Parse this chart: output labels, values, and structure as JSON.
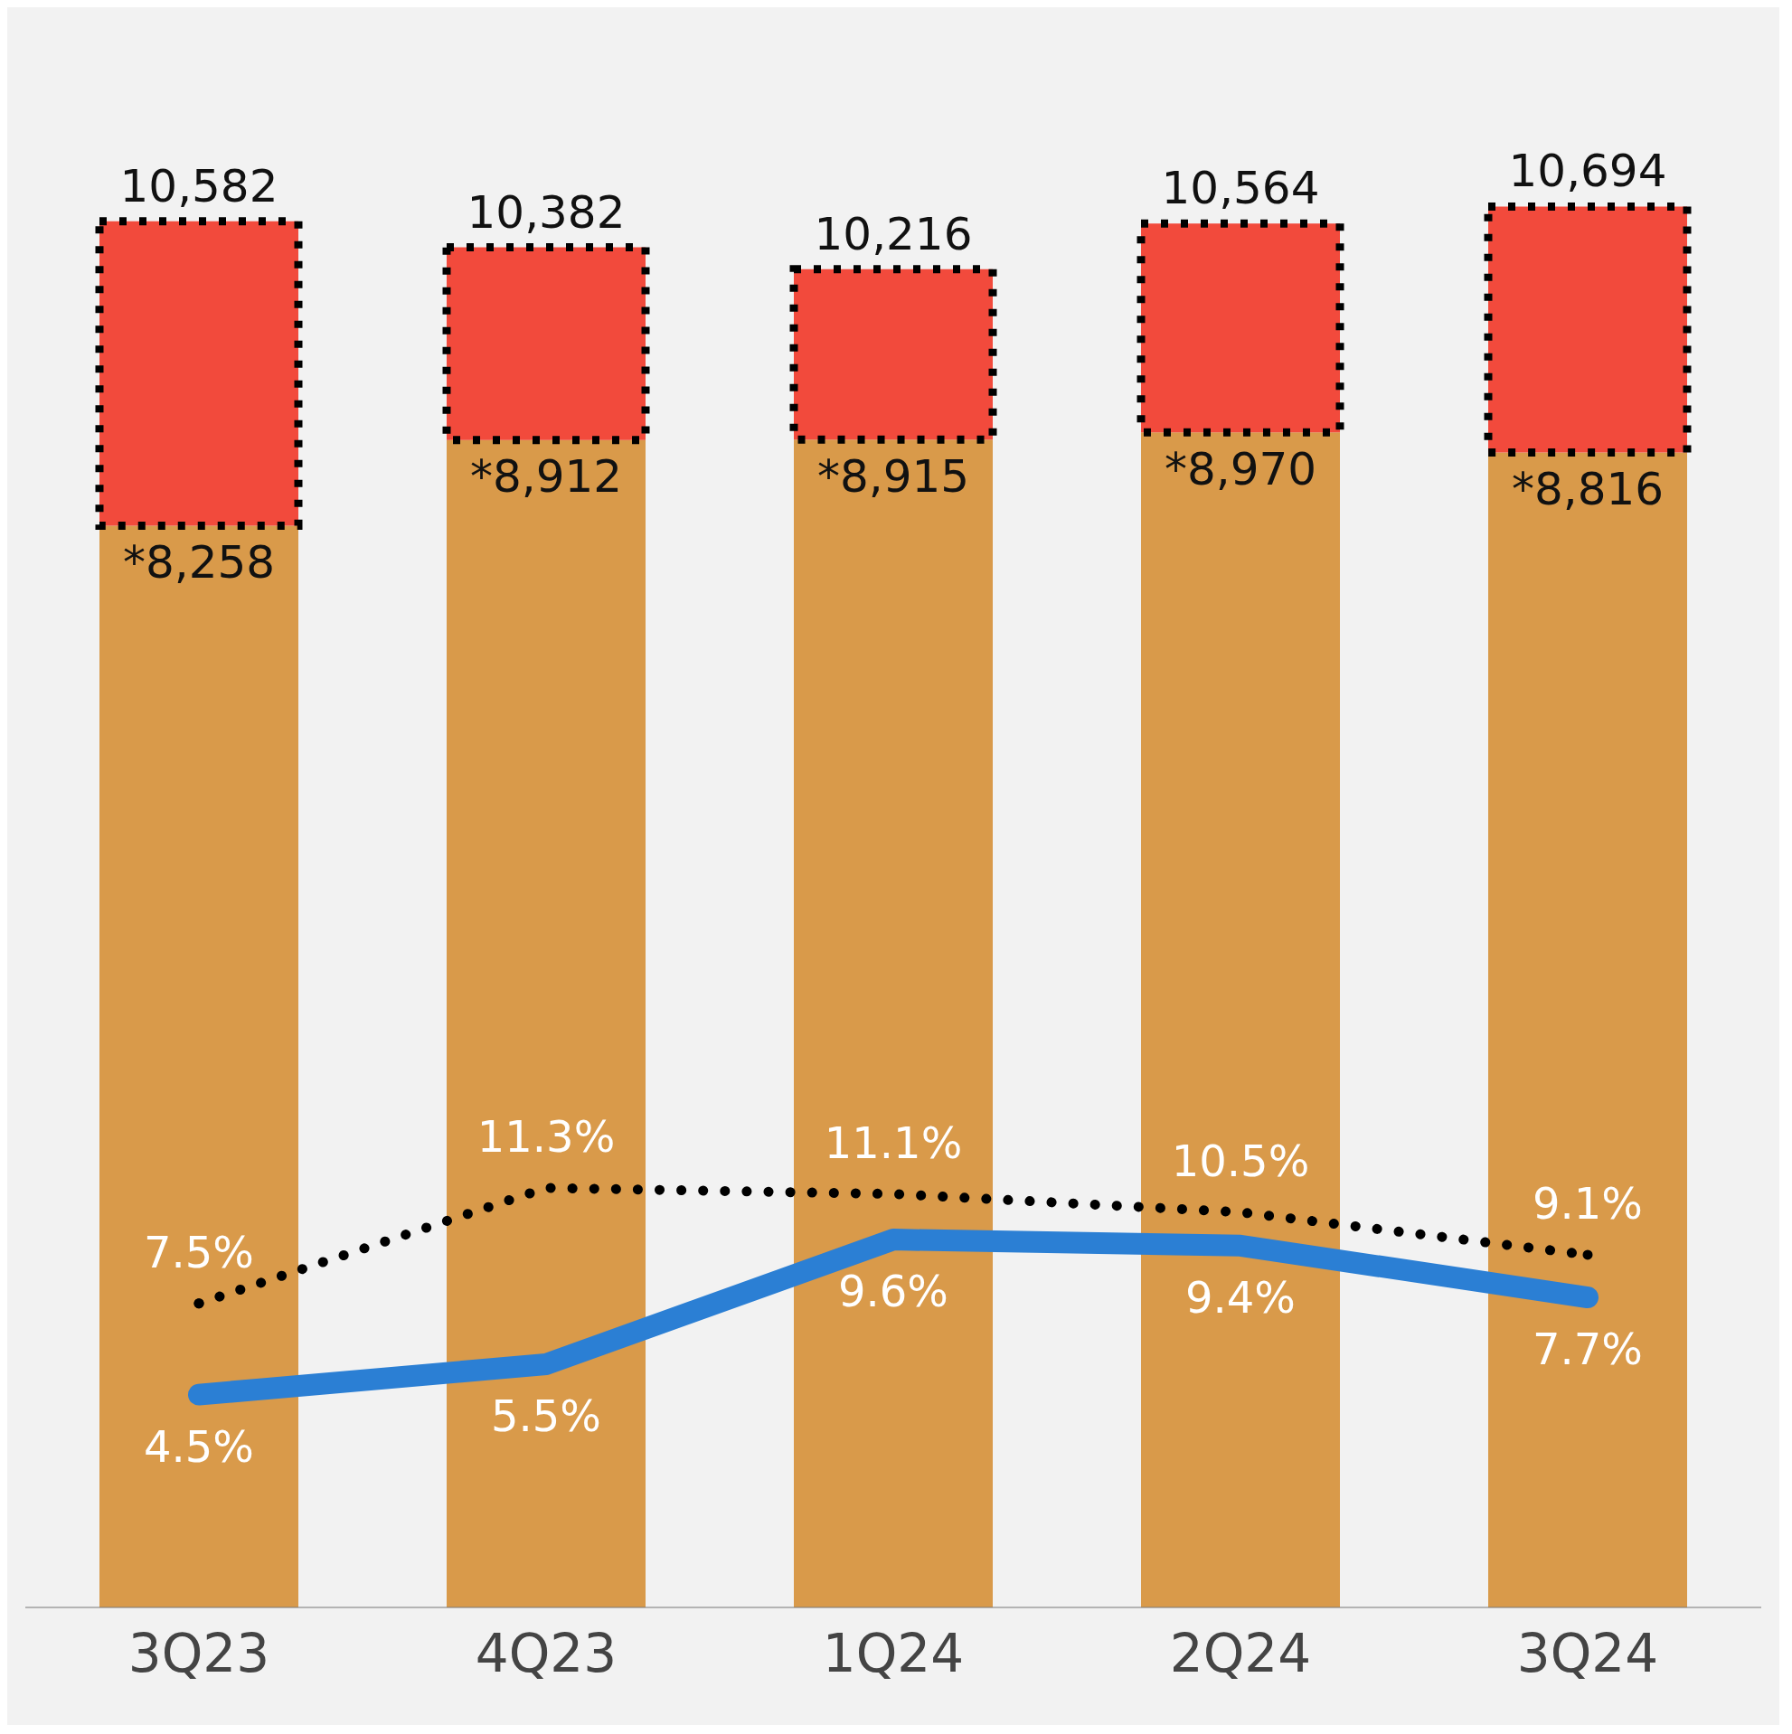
{
  "chart_data": {
    "type": "bar",
    "stacked": true,
    "categories": [
      "3Q23",
      "4Q23",
      "1Q24",
      "2Q24",
      "3Q24"
    ],
    "series": [
      {
        "color": "#d99a4a",
        "values": [
          8258,
          8912,
          8915,
          8970,
          8816
        ],
        "value_labels": [
          "*8,258",
          "*8,912",
          "*8,915",
          "*8,970",
          "*8,816"
        ]
      },
      {
        "color": "#f24a3c",
        "line_style": "dotted",
        "values": [
          2324,
          1470,
          1301,
          1594,
          1878
        ]
      },
      {
        "type": "line",
        "axis": "y2",
        "color": "#2b7fd4",
        "line_style": "solid",
        "marker": "none",
        "values": [
          4.5,
          5.5,
          9.6,
          9.4,
          7.7
        ],
        "value_labels": [
          "4.5%",
          "5.5%",
          "9.6%",
          "9.4%",
          "7.7%"
        ]
      },
      {
        "type": "line",
        "axis": "y2",
        "color": "#000000",
        "line_style": "dotted",
        "marker": "none",
        "values": [
          7.5,
          11.3,
          11.1,
          10.5,
          9.1
        ],
        "value_labels": [
          "7.5%",
          "11.3%",
          "11.1%",
          "10.5%",
          "9.1%"
        ]
      }
    ],
    "totals": [
      "10,582",
      "10,382",
      "10,216",
      "10,564",
      "10,694"
    ],
    "tick_labels": "x",
    "grid": false,
    "legend": false
  }
}
